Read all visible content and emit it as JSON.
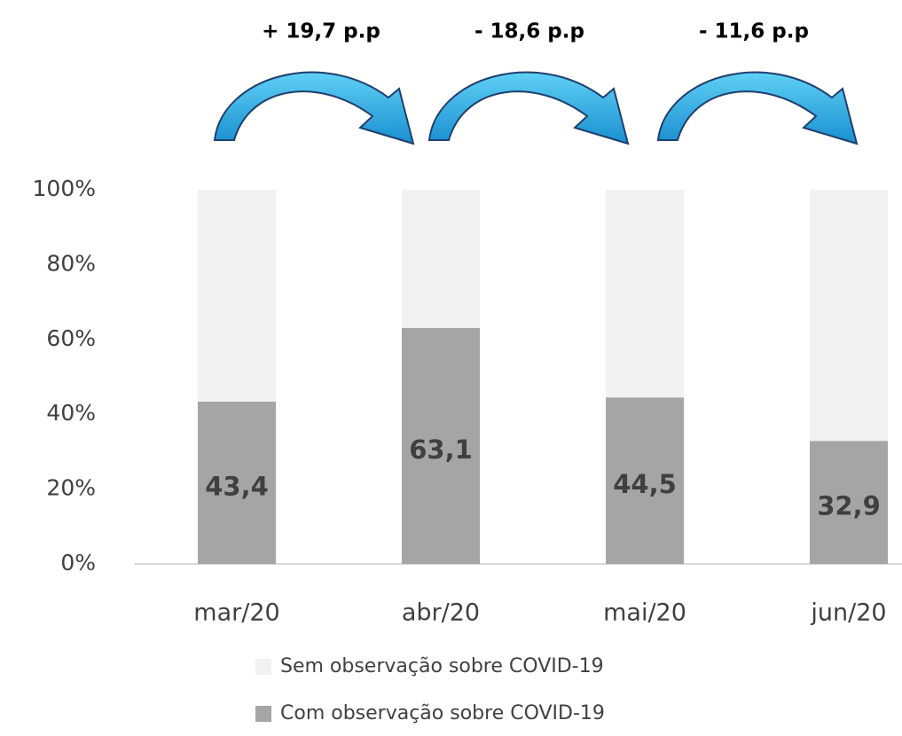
{
  "chart_data": {
    "type": "stacked_bar",
    "categories": [
      "mar/20",
      "abr/20",
      "mai/20",
      "jun/20"
    ],
    "series": [
      {
        "name": "Com observação sobre COVID-19",
        "color": "#a5a5a5",
        "values": [
          43.4,
          63.1,
          44.5,
          32.9
        ],
        "value_labels": [
          "43,4",
          "63,1",
          "44,5",
          "32,9"
        ]
      },
      {
        "name": "Sem observação sobre COVID-19",
        "color": "#f2f2f2",
        "values": [
          56.6,
          36.9,
          55.5,
          67.1
        ]
      }
    ],
    "ylim": [
      0,
      100
    ],
    "yticks": [
      {
        "value": 0,
        "label": "0%"
      },
      {
        "value": 20,
        "label": "20%"
      },
      {
        "value": 40,
        "label": "40%"
      },
      {
        "value": 60,
        "label": "60%"
      },
      {
        "value": 80,
        "label": "80%"
      },
      {
        "value": 100,
        "label": "100%"
      }
    ],
    "annotations": [
      "+ 19,7 p.p",
      "- 18,6 p.p",
      "- 11,6 p.p"
    ],
    "legend": "bottom"
  }
}
